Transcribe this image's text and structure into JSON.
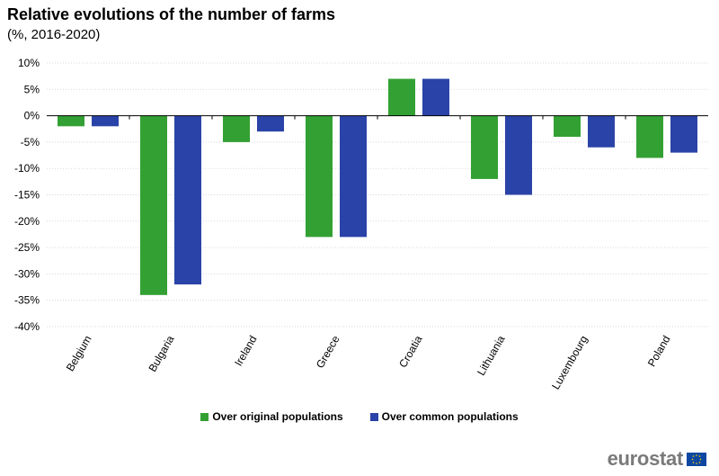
{
  "chart_data": {
    "type": "bar",
    "title": "Relative evolutions of the number of farms",
    "subtitle": "(%, 2016-2020)",
    "categories": [
      "Belgium",
      "Bulgaria",
      "Ireland",
      "Greece",
      "Croatia",
      "Lithuania",
      "Luxembourg",
      "Poland"
    ],
    "series": [
      {
        "name": "Over original populations",
        "color": "#33a033",
        "values": [
          -2,
          -34,
          -5,
          -23,
          7,
          -12,
          -4,
          -8
        ]
      },
      {
        "name": "Over common populations",
        "color": "#2a43a8",
        "values": [
          -2,
          -32,
          -3,
          -23,
          7,
          -15,
          -6,
          -7
        ]
      }
    ],
    "ylim": [
      -40,
      10
    ],
    "yticks": [
      10,
      5,
      0,
      -5,
      -10,
      -15,
      -20,
      -25,
      -30,
      -35,
      -40
    ],
    "ytick_labels": [
      "10%",
      "5%",
      "0%",
      "-5%",
      "-10%",
      "-15%",
      "-20%",
      "-25%",
      "-30%",
      "-35%",
      "-40%"
    ],
    "xlabel": "",
    "ylabel": "",
    "grid": true,
    "legend_position": "bottom"
  },
  "branding": {
    "logo_text": "eurostat"
  }
}
